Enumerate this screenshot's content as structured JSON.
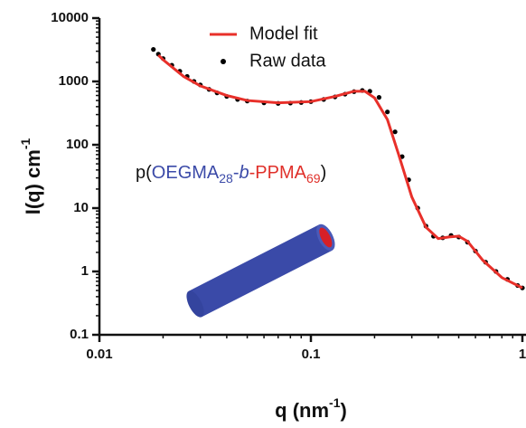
{
  "chart_data": {
    "type": "line",
    "xlabel": {
      "text": "q (nm",
      "sup": "-1",
      "tail": ")"
    },
    "ylabel": {
      "text": "I(q) cm",
      "sup": "-1"
    },
    "xscale": "log",
    "yscale": "log",
    "xlim": [
      0.01,
      1
    ],
    "ylim": [
      0.1,
      10000
    ],
    "xticks": [
      0.01,
      0.1,
      1
    ],
    "yticks": [
      0.1,
      1,
      10,
      100,
      1000,
      10000
    ],
    "legend": "top",
    "annotation": [
      {
        "text": "p(",
        "color": "#111111"
      },
      {
        "text": "OEGMA",
        "color": "#3b4aa8"
      },
      {
        "text": "28",
        "color": "#3b4aa8",
        "sub": true
      },
      {
        "text": "-",
        "color": "#3b4aa8"
      },
      {
        "text": "b",
        "color": "#3b4aa8",
        "italic": true
      },
      {
        "text": "-",
        "color": "#e0302a"
      },
      {
        "text": "PPMA",
        "color": "#e0302a"
      },
      {
        "text": "69",
        "color": "#e0302a",
        "sub": true
      },
      {
        "text": ")",
        "color": "#111111"
      }
    ],
    "series": [
      {
        "name": "Raw data",
        "color": "#000000",
        "style": "marker",
        "x": [
          0.018,
          0.019,
          0.02,
          0.022,
          0.024,
          0.026,
          0.028,
          0.03,
          0.033,
          0.036,
          0.04,
          0.045,
          0.05,
          0.06,
          0.07,
          0.08,
          0.09,
          0.1,
          0.115,
          0.13,
          0.145,
          0.16,
          0.175,
          0.19,
          0.21,
          0.23,
          0.25,
          0.27,
          0.29,
          0.32,
          0.35,
          0.38,
          0.42,
          0.46,
          0.5,
          0.55,
          0.6,
          0.67,
          0.75,
          0.85,
          0.95,
          1.0
        ],
        "values": [
          3200,
          2700,
          2300,
          1800,
          1450,
          1200,
          1000,
          880,
          750,
          660,
          580,
          520,
          490,
          460,
          450,
          455,
          465,
          480,
          520,
          570,
          630,
          690,
          720,
          700,
          560,
          330,
          160,
          65,
          28,
          10,
          5.2,
          3.6,
          3.4,
          3.7,
          3.5,
          2.9,
          2.1,
          1.4,
          1.0,
          0.75,
          0.6,
          0.55
        ]
      },
      {
        "name": "Model fit",
        "color": "#e8302a",
        "style": "line",
        "x": [
          0.019,
          0.02,
          0.025,
          0.03,
          0.04,
          0.05,
          0.07,
          0.1,
          0.13,
          0.16,
          0.18,
          0.2,
          0.23,
          0.26,
          0.3,
          0.35,
          0.4,
          0.45,
          0.5,
          0.55,
          0.65,
          0.8,
          1
        ],
        "values": [
          2600,
          2200,
          1200,
          850,
          600,
          500,
          460,
          480,
          580,
          700,
          700,
          550,
          250,
          70,
          15,
          5,
          3.3,
          3.5,
          3.6,
          3,
          1.5,
          0.8,
          0.55
        ]
      }
    ]
  }
}
